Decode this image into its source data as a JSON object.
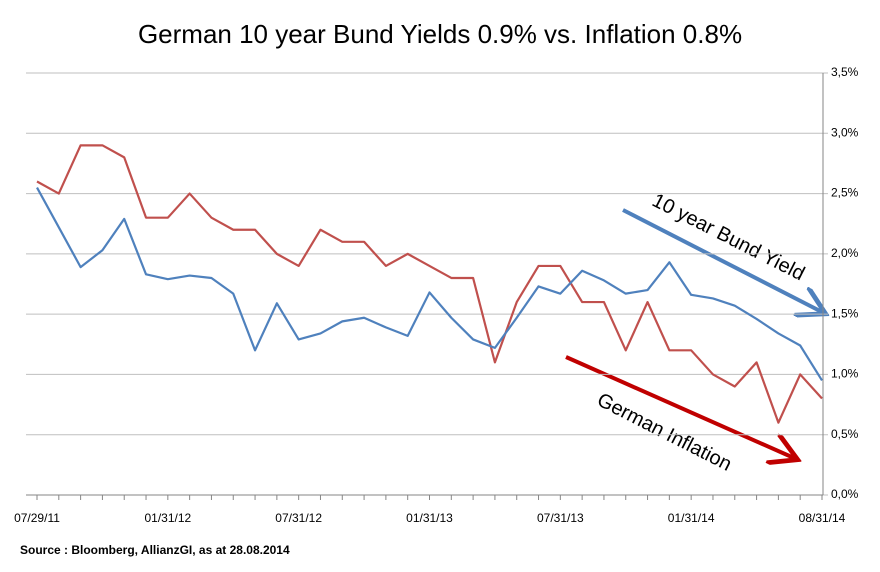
{
  "chart_data": {
    "type": "line",
    "title": "German 10 year Bund Yields 0.9% vs. Inflation 0.8%",
    "categories": [
      "07/29/11",
      null,
      null,
      null,
      null,
      null,
      "01/31/12",
      null,
      null,
      null,
      null,
      null,
      "07/31/12",
      null,
      null,
      null,
      null,
      null,
      "01/31/13",
      null,
      null,
      null,
      null,
      null,
      "07/31/13",
      null,
      null,
      null,
      null,
      null,
      "01/31/14",
      null,
      null,
      null,
      null,
      null,
      "08/31/14"
    ],
    "series": [
      {
        "name": "German Inflation",
        "color": "#c0504d",
        "values": [
          2.6,
          2.5,
          2.9,
          2.9,
          2.8,
          2.3,
          2.3,
          2.5,
          2.3,
          2.2,
          2.2,
          2.0,
          1.9,
          2.2,
          2.1,
          2.1,
          1.9,
          2.0,
          1.9,
          1.8,
          1.8,
          1.1,
          1.6,
          1.9,
          1.9,
          1.6,
          1.6,
          1.2,
          1.6,
          1.2,
          1.2,
          1.0,
          0.9,
          1.1,
          0.6,
          1.0,
          0.8
        ]
      },
      {
        "name": "10 year Bund Yield",
        "color": "#4f81bd",
        "values": [
          2.55,
          2.22,
          1.89,
          2.03,
          2.29,
          1.83,
          1.79,
          1.82,
          1.8,
          1.67,
          1.2,
          1.59,
          1.29,
          1.34,
          1.44,
          1.47,
          1.39,
          1.32,
          1.68,
          1.47,
          1.29,
          1.22,
          1.47,
          1.73,
          1.67,
          1.86,
          1.78,
          1.67,
          1.7,
          1.93,
          1.66,
          1.63,
          1.57,
          1.46,
          1.34,
          1.24,
          0.95
        ]
      }
    ],
    "ylim": [
      0,
      3.5
    ],
    "yticks": [
      {
        "value": 0,
        "label": "0,0%"
      },
      {
        "value": 0.5,
        "label": "0,5%"
      },
      {
        "value": 1,
        "label": "1,0%"
      },
      {
        "value": 1.5,
        "label": "1,5%"
      },
      {
        "value": 2,
        "label": "2,0%"
      },
      {
        "value": 2.5,
        "label": "2,5%"
      },
      {
        "value": 3,
        "label": "3,0%"
      },
      {
        "value": 3.5,
        "label": "3,5%"
      }
    ],
    "grid": true,
    "annotations": [
      "10 year Bund Yield",
      "German Inflation"
    ],
    "source": "Source : Bloomberg, AllianzGI, as at 28.08.2014"
  }
}
